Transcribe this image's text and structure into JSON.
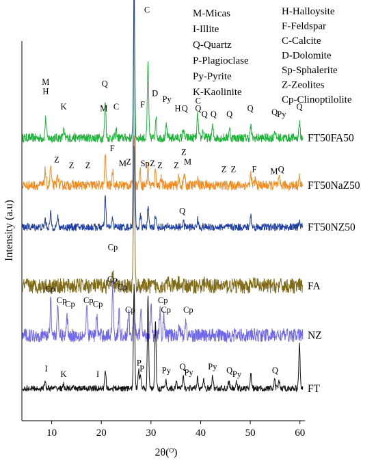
{
  "chart_data": {
    "type": "line",
    "title": "",
    "xlabel": "2θ(ᴼ)",
    "ylabel": "Intensity (a.u)",
    "xlim": [
      4,
      61
    ],
    "x_ticks": [
      "10",
      "20",
      "30",
      "40",
      "50",
      "60"
    ],
    "legend_placement": "top-right",
    "legend_left": [
      "M-Micas",
      "I-Illite",
      "Q-Quartz",
      "P-Plagioclase",
      "Py-Pyrite",
      "K-Kaolinite"
    ],
    "legend_right": [
      "H-Halloysite",
      "F-Feldspar",
      "C-Calcite",
      "D-Dolomite",
      "Sp-Sphalerite",
      "Z-Zeolites",
      "Cp-Clinoptilolite"
    ],
    "series": [
      {
        "name": "FT50FA50",
        "color": "#1fb43a",
        "baseline": 0.745,
        "noise": 0.012,
        "peaks": [
          [
            8.8,
            0.05
          ],
          [
            12.4,
            0.02
          ],
          [
            20.8,
            0.1
          ],
          [
            23.0,
            0.02
          ],
          [
            26.6,
            0.38
          ],
          [
            29.4,
            0.2
          ],
          [
            31.0,
            0.06
          ],
          [
            33.1,
            0.03
          ],
          [
            36.5,
            0.025
          ],
          [
            39.4,
            0.06
          ],
          [
            40.5,
            0.02
          ],
          [
            42.4,
            0.03
          ],
          [
            45.8,
            0.025
          ],
          [
            50.1,
            0.03
          ],
          [
            54.9,
            0.02
          ],
          [
            59.9,
            0.04
          ]
        ],
        "annotations": [
          {
            "text": "M",
            "x": 8.8,
            "h": 0.14
          },
          {
            "text": "H",
            "x": 8.8,
            "h": 0.115
          },
          {
            "text": "K",
            "x": 12.4,
            "h": 0.075
          },
          {
            "text": "Q",
            "x": 20.7,
            "h": 0.135
          },
          {
            "text": "M",
            "x": 20.5,
            "h": 0.07
          },
          {
            "text": "C",
            "x": 23.0,
            "h": 0.075
          },
          {
            "text": "Q",
            "x": 26.3,
            "h": 0.41
          },
          {
            "text": "C",
            "x": 29.2,
            "h": 0.33
          },
          {
            "text": "F",
            "x": 28.3,
            "h": 0.08
          },
          {
            "text": "D",
            "x": 30.8,
            "h": 0.11
          },
          {
            "text": "Py",
            "x": 33.2,
            "h": 0.095
          },
          {
            "text": "H",
            "x": 35.4,
            "h": 0.07
          },
          {
            "text": "Q",
            "x": 36.8,
            "h": 0.07
          },
          {
            "text": "C",
            "x": 39.5,
            "h": 0.09
          },
          {
            "text": "Q",
            "x": 39.5,
            "h": 0.07
          },
          {
            "text": "Q",
            "x": 40.8,
            "h": 0.055
          },
          {
            "text": "Q",
            "x": 42.6,
            "h": 0.055
          },
          {
            "text": "Q",
            "x": 45.8,
            "h": 0.055
          },
          {
            "text": "Q",
            "x": 50.0,
            "h": 0.07
          },
          {
            "text": "Q",
            "x": 54.9,
            "h": 0.06
          },
          {
            "text": "Py",
            "x": 56.3,
            "h": 0.055
          },
          {
            "text": "Q",
            "x": 59.9,
            "h": 0.075
          }
        ]
      },
      {
        "name": "FT50NaZ50",
        "color": "#f28a1e",
        "baseline": 0.62,
        "noise": 0.013,
        "peaks": [
          [
            8.7,
            0.04
          ],
          [
            9.8,
            0.05
          ],
          [
            11.2,
            0.03
          ],
          [
            20.8,
            0.08
          ],
          [
            22.3,
            0.04
          ],
          [
            26.6,
            0.14
          ],
          [
            27.8,
            0.04
          ],
          [
            29.4,
            0.05
          ],
          [
            30.9,
            0.04
          ],
          [
            32.0,
            0.02
          ],
          [
            35.6,
            0.02
          ],
          [
            36.7,
            0.03
          ],
          [
            39.4,
            0.02
          ],
          [
            50.1,
            0.03
          ],
          [
            51.0,
            0.015
          ],
          [
            55.8,
            0.015
          ],
          [
            59.9,
            0.02
          ]
        ],
        "annotations": [
          {
            "text": "Z",
            "x": 11.0,
            "h": 0.06
          },
          {
            "text": "Z",
            "x": 14.0,
            "h": 0.045
          },
          {
            "text": "Z",
            "x": 17.3,
            "h": 0.045
          },
          {
            "text": "F",
            "x": 22.2,
            "h": 0.09
          },
          {
            "text": "M",
            "x": 24.3,
            "h": 0.05
          },
          {
            "text": "Z",
            "x": 25.5,
            "h": 0.055
          },
          {
            "text": "Sp",
            "x": 28.8,
            "h": 0.05
          },
          {
            "text": "Z",
            "x": 30.3,
            "h": 0.05
          },
          {
            "text": "Z",
            "x": 31.8,
            "h": 0.045
          },
          {
            "text": "Z",
            "x": 35.1,
            "h": 0.045
          },
          {
            "text": "Z",
            "x": 36.6,
            "h": 0.08
          },
          {
            "text": "M",
            "x": 37.4,
            "h": 0.055
          },
          {
            "text": "Z",
            "x": 44.7,
            "h": 0.035
          },
          {
            "text": "Z",
            "x": 46.6,
            "h": 0.035
          },
          {
            "text": "F",
            "x": 50.8,
            "h": 0.035
          },
          {
            "text": "M",
            "x": 54.8,
            "h": 0.03
          },
          {
            "text": "Q",
            "x": 56.2,
            "h": 0.035
          }
        ]
      },
      {
        "name": "FT50NZ50",
        "color": "#1f3fa2",
        "baseline": 0.51,
        "noise": 0.01,
        "peaks": [
          [
            8.7,
            0.02
          ],
          [
            9.8,
            0.035
          ],
          [
            11.2,
            0.025
          ],
          [
            20.8,
            0.08
          ],
          [
            22.3,
            0.025
          ],
          [
            26.6,
            0.67
          ],
          [
            27.9,
            0.03
          ],
          [
            29.4,
            0.05
          ],
          [
            30.9,
            0.03
          ],
          [
            36.5,
            0.015
          ],
          [
            39.4,
            0.02
          ],
          [
            50.1,
            0.03
          ],
          [
            59.9,
            0.015
          ]
        ],
        "annotations": [
          {
            "text": "Q",
            "x": 36.3,
            "h": 0.035
          }
        ]
      },
      {
        "name": "FA",
        "color": "#7f6a17",
        "baseline": 0.355,
        "noise": 0.02,
        "peaks": [
          [
            22.3,
            0.03
          ],
          [
            26.6,
            0.36
          ],
          [
            33.5,
            0.012
          ],
          [
            35.6,
            0.012
          ],
          [
            40.8,
            0.01
          ],
          [
            50.8,
            0.012
          ]
        ],
        "annotations": [
          {
            "text": "Cp",
            "x": 22.3,
            "h": 0.095
          }
        ]
      },
      {
        "name": "NZ",
        "color": "#6f67f0",
        "baseline": 0.225,
        "noise": 0.018,
        "peaks": [
          [
            9.8,
            0.1
          ],
          [
            11.2,
            0.07
          ],
          [
            13.1,
            0.05
          ],
          [
            17.1,
            0.07
          ],
          [
            19.1,
            0.05
          ],
          [
            22.3,
            0.13
          ],
          [
            23.6,
            0.06
          ],
          [
            25.5,
            0.06
          ],
          [
            26.6,
            0.09
          ],
          [
            28.0,
            0.07
          ],
          [
            30.0,
            0.09
          ],
          [
            31.8,
            0.06
          ],
          [
            32.6,
            0.05
          ],
          [
            35.7,
            0.03
          ],
          [
            37.0,
            0.035
          ]
        ],
        "annotations": [
          {
            "text": "Cp",
            "x": 9.7,
            "h": 0.115
          },
          {
            "text": "Cp",
            "x": 12.0,
            "h": 0.085
          },
          {
            "text": "Cp",
            "x": 13.7,
            "h": 0.075
          },
          {
            "text": "Cp",
            "x": 17.4,
            "h": 0.085
          },
          {
            "text": "Cp",
            "x": 19.3,
            "h": 0.075
          },
          {
            "text": "Cp",
            "x": 22.2,
            "h": 0.14
          },
          {
            "text": "Cp",
            "x": 24.2,
            "h": 0.12
          },
          {
            "text": "Cp",
            "x": 25.8,
            "h": 0.06
          },
          {
            "text": "Cp",
            "x": 32.4,
            "h": 0.085
          },
          {
            "text": "Cp",
            "x": 33.0,
            "h": 0.06
          },
          {
            "text": "Cp",
            "x": 37.5,
            "h": 0.06
          }
        ]
      },
      {
        "name": "FT",
        "color": "#111111",
        "baseline": 0.085,
        "noise": 0.008,
        "peaks": [
          [
            8.7,
            0.02
          ],
          [
            12.4,
            0.01
          ],
          [
            20.8,
            0.05
          ],
          [
            26.6,
            0.27
          ],
          [
            27.5,
            0.05
          ],
          [
            27.9,
            0.04
          ],
          [
            29.4,
            0.24
          ],
          [
            30.9,
            0.18
          ],
          [
            33.0,
            0.02
          ],
          [
            35.1,
            0.02
          ],
          [
            36.5,
            0.03
          ],
          [
            39.4,
            0.03
          ],
          [
            40.6,
            0.02
          ],
          [
            42.4,
            0.035
          ],
          [
            45.7,
            0.02
          ],
          [
            47.2,
            0.015
          ],
          [
            50.1,
            0.04
          ],
          [
            54.9,
            0.02
          ],
          [
            55.8,
            0.02
          ],
          [
            59.9,
            0.12
          ]
        ],
        "annotations": [
          {
            "text": "I",
            "x": 8.9,
            "h": 0.045
          },
          {
            "text": "K",
            "x": 12.4,
            "h": 0.03
          },
          {
            "text": "I",
            "x": 19.3,
            "h": 0.03
          },
          {
            "text": "P",
            "x": 27.6,
            "h": 0.06
          },
          {
            "text": "P",
            "x": 28.2,
            "h": 0.045
          },
          {
            "text": "Py",
            "x": 33.1,
            "h": 0.04
          },
          {
            "text": "Q",
            "x": 36.4,
            "h": 0.05
          },
          {
            "text": "Py",
            "x": 37.6,
            "h": 0.035
          },
          {
            "text": "Py",
            "x": 42.4,
            "h": 0.05
          },
          {
            "text": "Q",
            "x": 45.8,
            "h": 0.04
          },
          {
            "text": "Py",
            "x": 47.3,
            "h": 0.03
          },
          {
            "text": "Q",
            "x": 55.0,
            "h": 0.04
          }
        ]
      }
    ]
  }
}
